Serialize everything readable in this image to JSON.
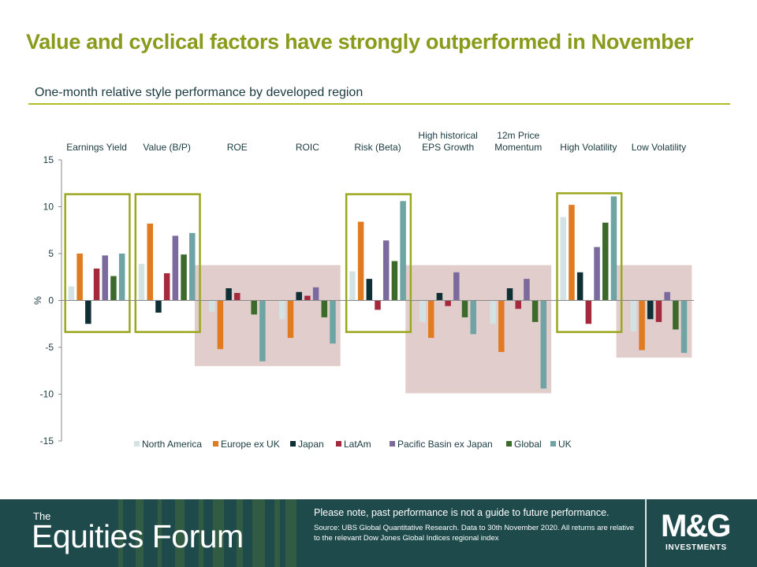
{
  "title": "Value and cyclical factors have strongly outperformed in November",
  "subtitle": "One-month relative style performance by developed region",
  "chart_data": {
    "type": "bar",
    "categories": [
      "Earnings Yield",
      "Value (B/P)",
      "ROE",
      "ROIC",
      "Risk (Beta)",
      "High historical EPS Growth",
      "12m Price Momentum",
      "High Volatility",
      "Low Volatility"
    ],
    "category_lines": [
      [
        "Earnings Yield"
      ],
      [
        "Value (B/P)"
      ],
      [
        "ROE"
      ],
      [
        "ROIC"
      ],
      [
        "Risk (Beta)"
      ],
      [
        "High historical",
        "EPS Growth"
      ],
      [
        "12m Price",
        "Momentum"
      ],
      [
        "High Volatility"
      ],
      [
        "Low Volatility"
      ]
    ],
    "series": [
      {
        "name": "North America",
        "color": "#d3e3e3",
        "values": [
          1.5,
          3.9,
          -1.2,
          -2.0,
          3.1,
          -2.3,
          -2.5,
          8.9,
          -3.3
        ]
      },
      {
        "name": "Europe ex UK",
        "color": "#e07b22",
        "values": [
          5.0,
          8.2,
          -5.2,
          -4.0,
          8.4,
          -4.0,
          -5.5,
          10.2,
          -5.3
        ]
      },
      {
        "name": "Japan",
        "color": "#0e2f34",
        "values": [
          -2.5,
          -1.3,
          1.3,
          0.9,
          2.3,
          0.8,
          1.3,
          3.0,
          -2.0
        ]
      },
      {
        "name": "LatAm",
        "color": "#a5293d",
        "values": [
          3.4,
          2.9,
          0.8,
          0.5,
          -1.0,
          -0.6,
          -0.9,
          -2.5,
          -2.3
        ]
      },
      {
        "name": "Pacific Basin ex Japan",
        "color": "#7a6a9e",
        "values": [
          4.8,
          6.9,
          0.0,
          1.4,
          6.4,
          3.0,
          2.3,
          5.7,
          0.9
        ]
      },
      {
        "name": "Global",
        "color": "#3b6a2a",
        "values": [
          2.6,
          4.9,
          -1.5,
          -1.8,
          4.2,
          -1.8,
          -2.3,
          8.3,
          -3.1
        ]
      },
      {
        "name": "UK",
        "color": "#6fa4a4",
        "values": [
          5.0,
          7.2,
          -6.5,
          -4.6,
          10.6,
          -3.6,
          -9.4,
          11.1,
          -5.6
        ]
      }
    ],
    "highlight_outperform": [
      "Earnings Yield",
      "Value (B/P)",
      "Risk (Beta)",
      "High Volatility"
    ],
    "highlight_underperform": [
      "ROE",
      "ROIC",
      "High historical EPS Growth",
      "12m Price Momentum",
      "Low Volatility"
    ],
    "ylabel": "%",
    "ylim": [
      -15,
      15
    ],
    "yticks": [
      15,
      10,
      5,
      0,
      -5,
      -10,
      -15
    ],
    "legend_position": "bottom",
    "grid": false
  },
  "footer": {
    "brand_small": "The",
    "brand_name": "Equities Forum",
    "note": "Please note, past performance is not a guide to future performance.",
    "source": "Source: UBS Global Quantitative Research. Data to 30th November 2020. All returns are relative to the relevant Dow Jones Global Indices regional index",
    "logo": "M&G",
    "logo_sub": "INVESTMENTS"
  },
  "colors": {
    "title": "#8a9a1a",
    "outperform_box": "#9aa81e",
    "underperform_box": "#d8bcbc",
    "footer_bg": "#1f4a4c"
  }
}
